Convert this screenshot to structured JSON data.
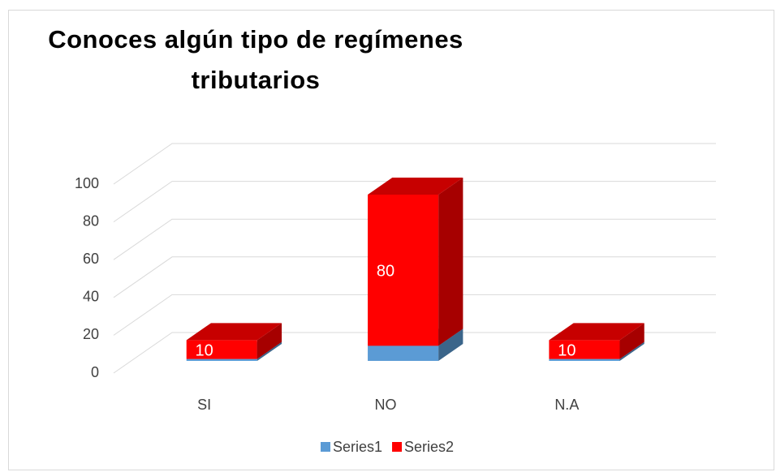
{
  "chart_data": {
    "type": "bar3d_stacked",
    "title": "Conoces algún tipo de regímenes tributarios",
    "categories": [
      "SI",
      "NO",
      "N.A"
    ],
    "series": [
      {
        "name": "Series1",
        "color": "#5b9bd5",
        "values": [
          1,
          8,
          1
        ]
      },
      {
        "name": "Series2",
        "color": "#ff0000",
        "values": [
          10,
          80,
          10
        ],
        "data_labels": true
      }
    ],
    "ylim": [
      0,
      100
    ],
    "yticks": [
      0,
      20,
      40,
      60,
      80,
      100
    ],
    "grid": true,
    "legend": "bottom"
  }
}
